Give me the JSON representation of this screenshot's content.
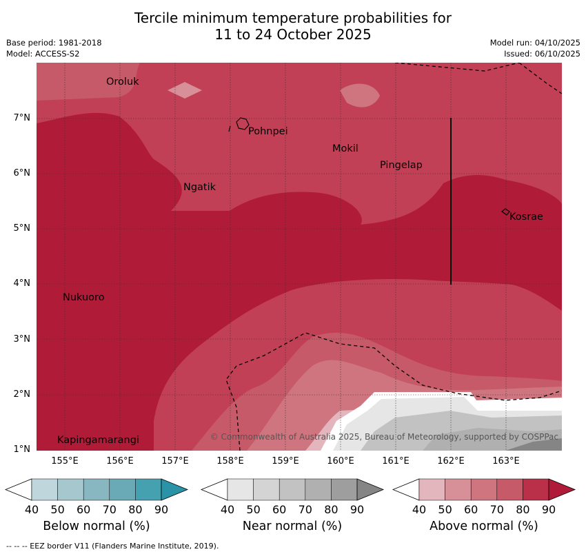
{
  "header": {
    "title_line1": "Tercile minimum temperature probabilities for",
    "title_line2": "11 to 24 October 2025",
    "base_period": "Base period: 1981-2018",
    "model": "Model: ACCESS-S2",
    "model_run": "Model run: 04/10/2025",
    "issued": "Issued: 06/10/2025"
  },
  "map": {
    "lat_labels": [
      "7°N",
      "6°N",
      "5°N",
      "4°N",
      "3°N",
      "2°N",
      "1°N"
    ],
    "lon_labels": [
      "155°E",
      "156°E",
      "157°E",
      "158°E",
      "159°E",
      "160°E",
      "161°E",
      "162°E",
      "163°E"
    ],
    "places": [
      "Oroluk",
      "Pohnpei",
      "Mokil",
      "Pingelap",
      "Ngatik",
      "Kosrae",
      "Nukuoro",
      "Kapingamarangi"
    ],
    "copyright": "© Commonwealth of Australia 2025, Bureau of Meteorology, supported by COSPPac"
  },
  "legend": {
    "below": {
      "title": "Below normal (%)",
      "ticks": [
        "40",
        "50",
        "60",
        "70",
        "80",
        "90"
      ],
      "colors": [
        "#bfd6dc",
        "#a6c7ce",
        "#89b7c1",
        "#6aa9b6",
        "#45a0b0",
        "#2b93a8"
      ]
    },
    "near": {
      "title": "Near normal (%)",
      "ticks": [
        "40",
        "50",
        "60",
        "70",
        "80",
        "90"
      ],
      "colors": [
        "#e6e6e6",
        "#d4d4d4",
        "#c2c2c2",
        "#b0b0b0",
        "#9e9e9e",
        "#858585"
      ]
    },
    "above": {
      "title": "Above normal (%)",
      "ticks": [
        "40",
        "50",
        "60",
        "70",
        "80",
        "90"
      ],
      "colors": [
        "#e3b5bd",
        "#d89098",
        "#cf757f",
        "#c65a68",
        "#bb3049",
        "#b01c38"
      ]
    }
  },
  "footer": {
    "eez_note": "--  --  -- EEZ border V11 (Flanders Marine Institute, 2019)."
  }
}
